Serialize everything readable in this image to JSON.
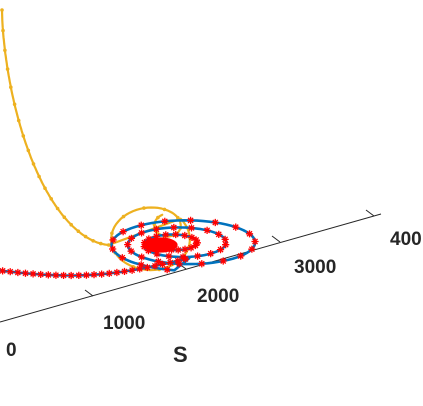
{
  "chart_data": {
    "type": "line",
    "view": "3d-perspective",
    "xlabel": "S",
    "x_ticks": [
      "0",
      "1000",
      "2000",
      "3000",
      "400"
    ],
    "series": [
      {
        "name": "",
        "style": "curve",
        "color": "#EDB120"
      },
      {
        "name": "",
        "style": "curve",
        "color": "#0072BD"
      },
      {
        "name": "",
        "style": "markers",
        "marker": "*",
        "color": "#FF0000"
      }
    ],
    "grid": false
  }
}
